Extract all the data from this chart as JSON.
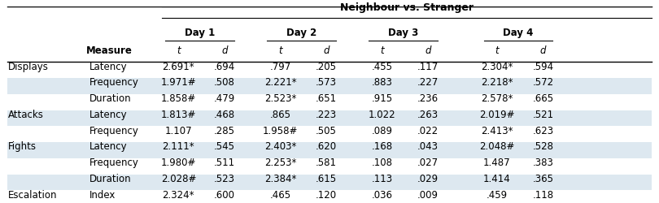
{
  "title": "Neighbour vs. Stranger",
  "day_headers": [
    "Day 1",
    "Day 2",
    "Day 3",
    "Day 4"
  ],
  "col_headers": [
    "t",
    "d",
    "t",
    "d",
    "t",
    "d",
    "t",
    "d"
  ],
  "row_groups": [
    {
      "group": "Displays",
      "rows": [
        {
          "measure": "Latency",
          "vals": [
            "2.691*",
            ".694",
            ".797",
            ".205",
            ".455",
            ".117",
            "2.304*",
            ".594"
          ]
        },
        {
          "measure": "Frequency",
          "vals": [
            "1.971#",
            ".508",
            "2.221*",
            ".573",
            ".883",
            ".227",
            "2.218*",
            ".572"
          ]
        },
        {
          "measure": "Duration",
          "vals": [
            "1.858#",
            ".479",
            "2.523*",
            ".651",
            ".915",
            ".236",
            "2.578*",
            ".665"
          ]
        }
      ]
    },
    {
      "group": "Attacks",
      "rows": [
        {
          "measure": "Latency",
          "vals": [
            "1.813#",
            ".468",
            ".865",
            ".223",
            "1.022",
            ".263",
            "2.019#",
            ".521"
          ]
        },
        {
          "measure": "Frequency",
          "vals": [
            "1.107",
            ".285",
            "1.958#",
            ".505",
            ".089",
            ".022",
            "2.413*",
            ".623"
          ]
        }
      ]
    },
    {
      "group": "Fights",
      "rows": [
        {
          "measure": "Latency",
          "vals": [
            "2.111*",
            ".545",
            "2.403*",
            ".620",
            ".168",
            ".043",
            "2.048#",
            ".528"
          ]
        },
        {
          "measure": "Frequency",
          "vals": [
            "1.980#",
            ".511",
            "2.253*",
            ".581",
            ".108",
            ".027",
            "1.487",
            ".383"
          ]
        },
        {
          "measure": "Duration",
          "vals": [
            "2.028#",
            ".523",
            "2.384*",
            ".615",
            ".113",
            ".029",
            "1.414",
            ".365"
          ]
        }
      ]
    },
    {
      "group": "Escalation",
      "rows": [
        {
          "measure": "Index",
          "vals": [
            "2.324*",
            ".600",
            ".465",
            ".120",
            ".036",
            ".009",
            ".459",
            ".118"
          ]
        }
      ]
    }
  ],
  "stripe_color": "#dde8f0",
  "header_bg": "#ffffff",
  "line_color": "#000000",
  "font_size": 8.5
}
